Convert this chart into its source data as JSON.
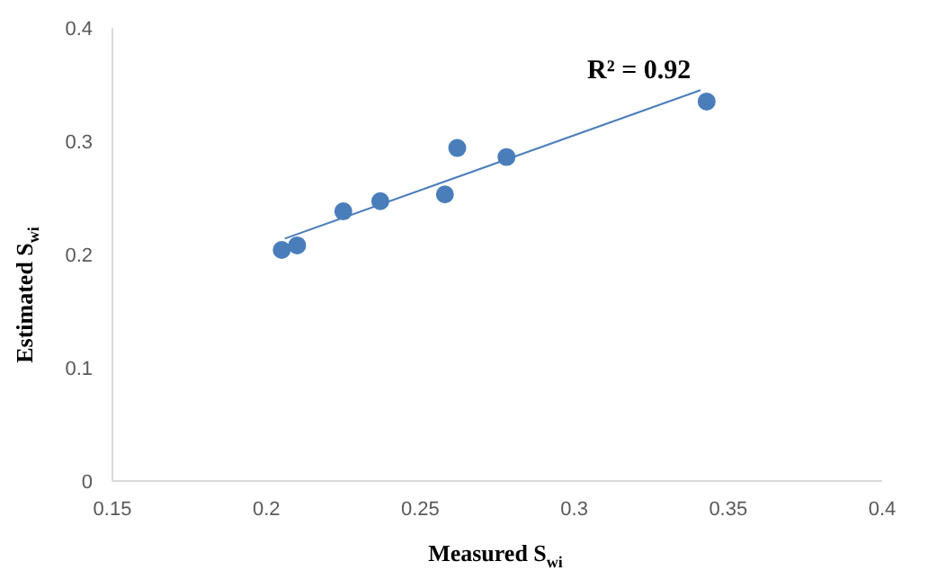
{
  "chart_data": {
    "type": "scatter",
    "xlabel": "Measured S$_{wi}$",
    "ylabel": "Estimated S$_{wi}$",
    "annotations": [
      "R² = 0.92"
    ],
    "xlim": [
      0.15,
      0.4
    ],
    "ylim": [
      0,
      0.4
    ],
    "xticks": [
      0.15,
      0.2,
      0.25,
      0.3,
      0.35,
      0.4
    ],
    "yticks": [
      0,
      0.1,
      0.2,
      0.3,
      0.4
    ],
    "grid": false,
    "marker": "circle",
    "series": [
      {
        "color": "#4a7ebb",
        "x": [
          0.205,
          0.21,
          0.225,
          0.237,
          0.258,
          0.262,
          0.278,
          0.343
        ],
        "values": [
          0.204,
          0.208,
          0.238,
          0.247,
          0.253,
          0.294,
          0.286,
          0.335
        ]
      },
      {
        "type": "line",
        "color": "#4a7ebb",
        "marker": "none",
        "line_style": "solid",
        "x": [
          0.206,
          0.341
        ],
        "values": [
          0.214,
          0.345
        ]
      }
    ]
  }
}
